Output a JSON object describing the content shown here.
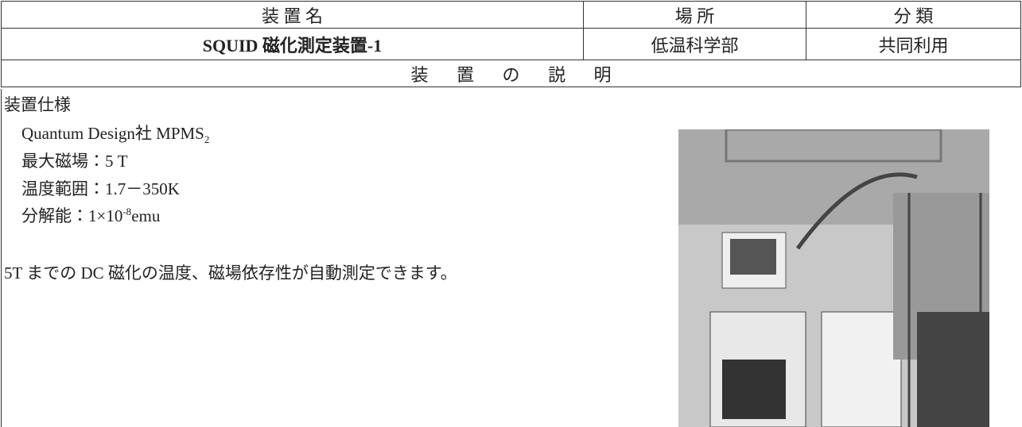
{
  "table": {
    "header": [
      "装 置 名",
      "場 所",
      "分 類"
    ],
    "row": [
      "SQUID 磁化測定装置-1",
      "低温科学部",
      "共同利用"
    ],
    "section": "装 置 の 説 明"
  },
  "body": {
    "heading": "装置仕様",
    "specs": [
      {
        "text": "Quantum Design社  MPMS",
        "sub": "2"
      },
      {
        "text": "最大磁場：5 T"
      },
      {
        "text": "温度範囲：1.7－350K"
      },
      {
        "text": "分解能：1×10",
        "sup": "-8",
        "after": "emu"
      }
    ],
    "description": "5T までの DC 磁化の温度、磁場依存性が自動測定できます。"
  }
}
